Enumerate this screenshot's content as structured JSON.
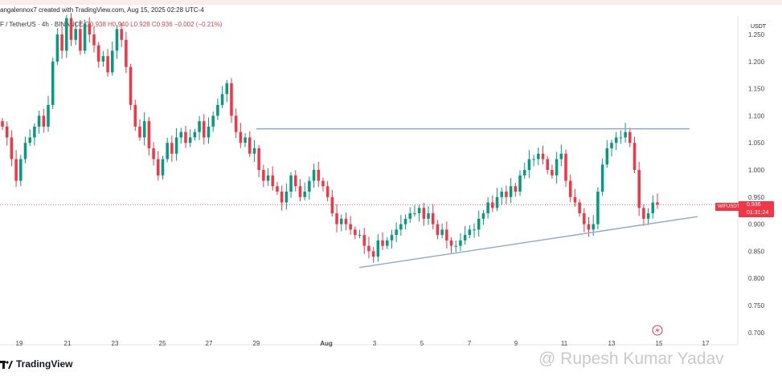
{
  "header": {
    "author_line": "angalennox7 created with TradingView.com, Aug 15, 2025 02:28 UTC-4"
  },
  "symbol_bar": {
    "symbol": "F / TetherUS · 4h · BINANCE",
    "ohlc": "O0.938 H0.940 L0.928 C0.936 −0.002 (−0.21%)"
  },
  "price_axis_unit": "USDT",
  "price_tag": {
    "symbol": "WIFUSDT",
    "price": "0.936",
    "countdown": "01:31:24"
  },
  "logo_text": "TradingView",
  "watermark": "@ Rupesh Kumar Yadav",
  "colors": {
    "up": "#089981",
    "down": "#f23645",
    "trendline": "#8fa9c9",
    "price_line": "#f23645"
  },
  "chart_data": {
    "type": "candlestick",
    "title": "",
    "xlabel": "",
    "ylabel": "USDT",
    "ylim": [
      0.7,
      1.27
    ],
    "y_ticks": [
      1.25,
      1.2,
      1.15,
      1.1,
      1.05,
      1.0,
      0.95,
      0.9,
      0.85,
      0.8,
      0.75,
      0.7
    ],
    "x_ticks": [
      "19",
      "21",
      "23",
      "25",
      "27",
      "29",
      "Aug",
      "3",
      "5",
      "7",
      "9",
      "11",
      "13",
      "15",
      "17"
    ],
    "last_price": 0.936,
    "grid": false,
    "annotations": [
      {
        "type": "horizontal_line",
        "value": 1.076,
        "from": "29",
        "to": "16"
      },
      {
        "type": "trend_line",
        "start": {
          "date": "Aug 2",
          "price": 0.82
        },
        "end": {
          "date": "Aug 16",
          "price": 0.914
        }
      }
    ],
    "closes": [
      1.08,
      1.06,
      1.02,
      0.98,
      1.02,
      1.05,
      1.06,
      1.08,
      1.1,
      1.08,
      1.12,
      1.2,
      1.25,
      1.22,
      1.28,
      1.24,
      1.26,
      1.22,
      1.27,
      1.25,
      1.23,
      1.2,
      1.21,
      1.18,
      1.22,
      1.26,
      1.24,
      1.19,
      1.12,
      1.08,
      1.06,
      1.09,
      1.04,
      1.02,
      0.99,
      1.02,
      1.05,
      1.03,
      1.06,
      1.07,
      1.05,
      1.06,
      1.07,
      1.09,
      1.06,
      1.08,
      1.1,
      1.12,
      1.14,
      1.16,
      1.1,
      1.07,
      1.05,
      1.06,
      1.03,
      1.04,
      1.0,
      0.98,
      0.99,
      0.97,
      0.96,
      0.94,
      0.96,
      0.99,
      0.97,
      0.95,
      0.96,
      0.98,
      1.0,
      0.98,
      0.97,
      0.95,
      0.92,
      0.9,
      0.91,
      0.9,
      0.89,
      0.88,
      0.88,
      0.86,
      0.85,
      0.84,
      0.87,
      0.86,
      0.87,
      0.88,
      0.89,
      0.9,
      0.91,
      0.92,
      0.92,
      0.93,
      0.91,
      0.92,
      0.9,
      0.88,
      0.89,
      0.87,
      0.86,
      0.86,
      0.87,
      0.88,
      0.89,
      0.89,
      0.91,
      0.92,
      0.94,
      0.93,
      0.95,
      0.96,
      0.95,
      0.97,
      0.96,
      0.99,
      1.0,
      1.02,
      1.02,
      1.03,
      1.02,
      1.0,
      0.99,
      1.02,
      1.03,
      0.98,
      0.95,
      0.94,
      0.92,
      0.9,
      0.89,
      0.9,
      0.96,
      1.01,
      1.04,
      1.05,
      1.06,
      1.06,
      1.07,
      1.05,
      1.0,
      0.93,
      0.91,
      0.92,
      0.94,
      0.936
    ]
  }
}
